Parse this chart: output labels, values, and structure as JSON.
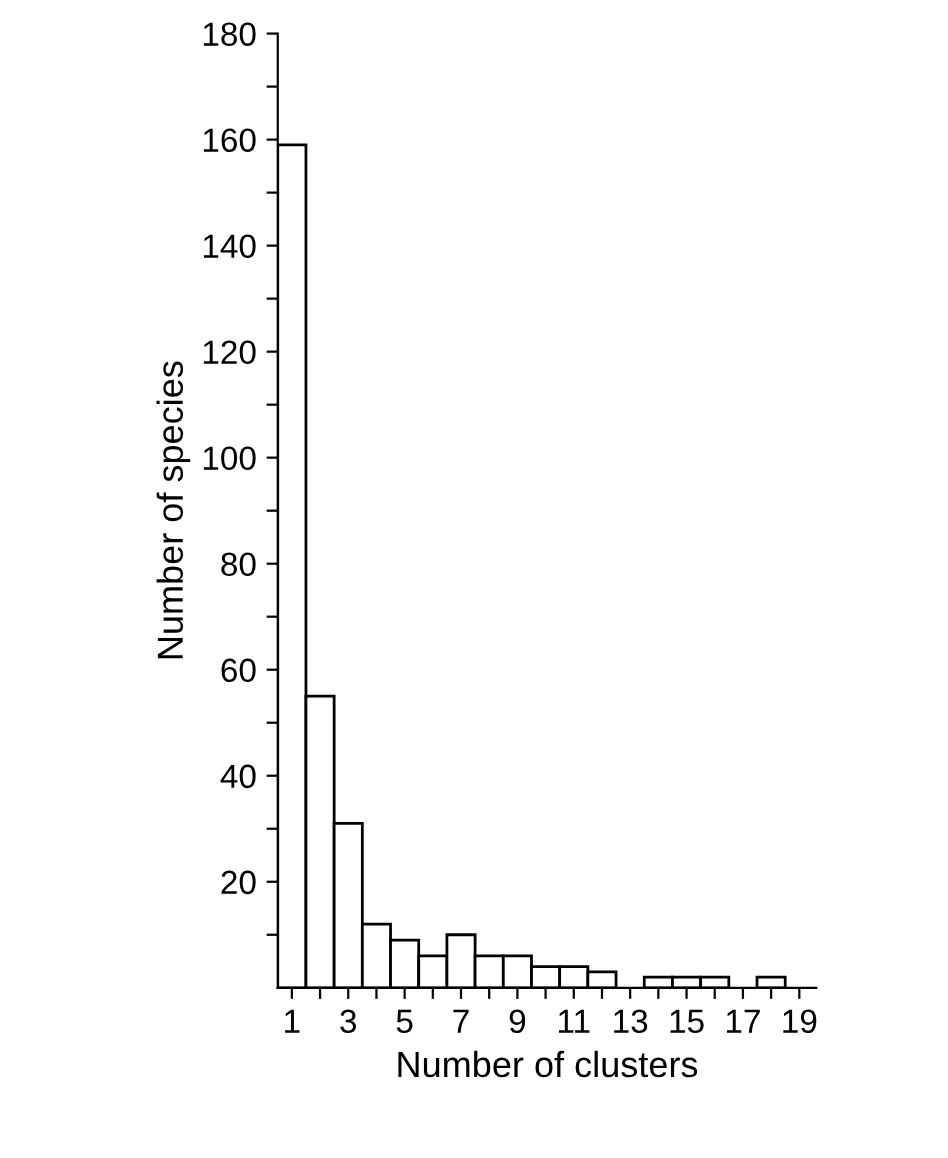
{
  "chart_data": {
    "type": "bar",
    "xlabel": "Number of clusters",
    "ylabel": "Number of species",
    "x": [
      1,
      2,
      3,
      4,
      5,
      6,
      7,
      8,
      9,
      10,
      11,
      12,
      13,
      14,
      15,
      16,
      17,
      18
    ],
    "values": [
      159,
      55,
      31,
      12,
      9,
      6,
      10,
      6,
      6,
      4,
      4,
      3,
      null,
      2,
      2,
      2,
      null,
      2
    ],
    "color": "#ffffff",
    "xlim": [
      0.5,
      19.6
    ],
    "xticks": [
      1,
      {
        "value": 2,
        "label": null
      },
      3,
      {
        "value": 4,
        "label": null
      },
      5,
      {
        "value": 6,
        "label": null
      },
      7,
      {
        "value": 8,
        "label": null
      },
      9,
      {
        "value": 10,
        "label": null
      },
      11,
      {
        "value": 12,
        "label": null
      },
      13,
      {
        "value": 14,
        "label": null
      },
      15,
      {
        "value": 16,
        "label": null
      },
      17,
      {
        "value": 18,
        "label": null
      },
      19
    ],
    "ylim": [
      0,
      180
    ],
    "yticks": [
      {
        "value": 10,
        "label": null
      },
      20,
      {
        "value": 30,
        "label": null
      },
      40,
      {
        "value": 50,
        "label": null
      },
      60,
      {
        "value": 70,
        "label": null
      },
      80,
      {
        "value": 90,
        "label": null
      },
      100,
      {
        "value": 110,
        "label": null
      },
      120,
      {
        "value": 130,
        "label": null
      },
      140,
      {
        "value": 150,
        "label": null
      },
      160,
      {
        "value": 170,
        "label": null
      },
      180
    ],
    "grid": false
  }
}
